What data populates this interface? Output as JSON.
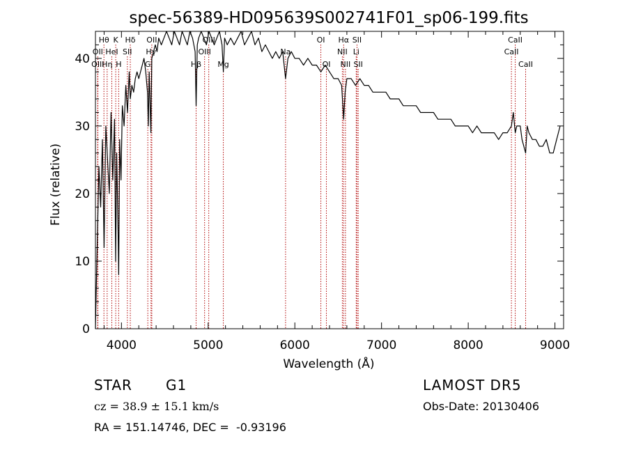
{
  "chart_data": {
    "type": "line",
    "title": "spec-56389-HD095639S002741F01_sp06-199.fits",
    "xlabel": "Wavelength (Å)",
    "ylabel": "Flux (relative)",
    "xlim": [
      3700,
      9100
    ],
    "ylim": [
      0,
      44
    ],
    "xticks": [
      4000,
      5000,
      6000,
      7000,
      8000,
      9000
    ],
    "yticks": [
      0,
      10,
      20,
      30,
      40
    ],
    "grid": false,
    "series": [
      {
        "line_color": "#000000",
        "x": [
          3700,
          3710,
          3725,
          3740,
          3760,
          3780,
          3800,
          3820,
          3840,
          3860,
          3880,
          3900,
          3920,
          3933,
          3945,
          3960,
          3968,
          3980,
          3995,
          4010,
          4030,
          4050,
          4070,
          4090,
          4102,
          4120,
          4140,
          4160,
          4180,
          4200,
          4220,
          4240,
          4260,
          4280,
          4300,
          4310,
          4320,
          4340,
          4350,
          4370,
          4390,
          4410,
          4430,
          4460,
          4490,
          4520,
          4550,
          4580,
          4610,
          4640,
          4670,
          4700,
          4730,
          4760,
          4790,
          4820,
          4850,
          4861,
          4875,
          4890,
          4920,
          4950,
          4980,
          5010,
          5040,
          5070,
          5100,
          5130,
          5160,
          5175,
          5190,
          5220,
          5260,
          5300,
          5340,
          5380,
          5420,
          5460,
          5500,
          5540,
          5580,
          5620,
          5660,
          5700,
          5740,
          5780,
          5820,
          5860,
          5893,
          5920,
          5960,
          6000,
          6050,
          6100,
          6150,
          6200,
          6250,
          6300,
          6350,
          6400,
          6450,
          6500,
          6540,
          6563,
          6580,
          6600,
          6650,
          6700,
          6750,
          6800,
          6850,
          6900,
          6950,
          7000,
          7050,
          7100,
          7150,
          7200,
          7250,
          7300,
          7350,
          7400,
          7450,
          7500,
          7550,
          7600,
          7650,
          7700,
          7750,
          7800,
          7850,
          7900,
          7950,
          8000,
          8050,
          8100,
          8150,
          8200,
          8250,
          8300,
          8350,
          8400,
          8450,
          8498,
          8520,
          8542,
          8560,
          8600,
          8620,
          8662,
          8680,
          8700,
          8740,
          8780,
          8820,
          8860,
          8900,
          8940,
          8980,
          9020,
          9040,
          9060
        ],
        "y": [
          0,
          6,
          15,
          24,
          18,
          28,
          12,
          30,
          25,
          20,
          32,
          22,
          31,
          10,
          26,
          15,
          8,
          28,
          22,
          33,
          30,
          36,
          32,
          38,
          34,
          36,
          35,
          37,
          38,
          37,
          38,
          39,
          40,
          38,
          35,
          30,
          38,
          29,
          40,
          41,
          42,
          41,
          43,
          42,
          43,
          44,
          43,
          42,
          44,
          43,
          42,
          44,
          43,
          42,
          44,
          43,
          41,
          33,
          42,
          43,
          44,
          43,
          42,
          44,
          43,
          42,
          43,
          44,
          42,
          38,
          43,
          42,
          43,
          42,
          43,
          44,
          42,
          43,
          44,
          42,
          43,
          41,
          42,
          41,
          40,
          41,
          40,
          41,
          37,
          40,
          41,
          40,
          40,
          39,
          40,
          39,
          39,
          38,
          39,
          38,
          37,
          37,
          36,
          31,
          35,
          37,
          37,
          36,
          37,
          36,
          36,
          35,
          35,
          35,
          35,
          34,
          34,
          34,
          33,
          33,
          33,
          33,
          32,
          32,
          32,
          32,
          31,
          31,
          31,
          31,
          30,
          30,
          30,
          30,
          29,
          30,
          29,
          29,
          29,
          29,
          28,
          29,
          29,
          30,
          32,
          29,
          30,
          30,
          28,
          26,
          30,
          29,
          28,
          28,
          27,
          27,
          28,
          26,
          26,
          28,
          29,
          30
        ]
      }
    ],
    "line_markers": [
      {
        "name": "Hθ",
        "wl": 3798,
        "row": 0
      },
      {
        "name": "K",
        "wl": 3934,
        "row": 0
      },
      {
        "name": "Hδ",
        "wl": 4102,
        "row": 0
      },
      {
        "name": "OII",
        "wl": 4350,
        "row": 0
      },
      {
        "name": "OIII",
        "wl": 5007,
        "row": 0
      },
      {
        "name": "OI",
        "wl": 6300,
        "row": 0
      },
      {
        "name": "Hα",
        "wl": 6563,
        "row": 0
      },
      {
        "name": "SII",
        "wl": 6717,
        "row": 0
      },
      {
        "name": "CaII",
        "wl": 8542,
        "row": 0
      },
      {
        "name": "OII",
        "wl": 3727,
        "row": 1
      },
      {
        "name": "HeI",
        "wl": 3889,
        "row": 1
      },
      {
        "name": "SII",
        "wl": 4068,
        "row": 1
      },
      {
        "name": "Hγ",
        "wl": 4341,
        "row": 1
      },
      {
        "name": "OIII",
        "wl": 4959,
        "row": 1
      },
      {
        "name": "Na",
        "wl": 5893,
        "row": 1
      },
      {
        "name": "NII",
        "wl": 6548,
        "row": 1
      },
      {
        "name": "Li",
        "wl": 6708,
        "row": 1
      },
      {
        "name": "CaII",
        "wl": 8498,
        "row": 1
      },
      {
        "name": "OIII",
        "wl": 3727,
        "row": 2
      },
      {
        "name": "Hη",
        "wl": 3835,
        "row": 2
      },
      {
        "name": "H",
        "wl": 3968,
        "row": 2
      },
      {
        "name": "G",
        "wl": 4304,
        "row": 2
      },
      {
        "name": "Hβ",
        "wl": 4861,
        "row": 2
      },
      {
        "name": "Mg",
        "wl": 5175,
        "row": 2
      },
      {
        "name": "OI",
        "wl": 6364,
        "row": 2
      },
      {
        "name": "NII",
        "wl": 6584,
        "row": 2
      },
      {
        "name": "SII",
        "wl": 6731,
        "row": 2
      },
      {
        "name": "CaII",
        "wl": 8662,
        "row": 2
      }
    ],
    "marker_color": "#b00000"
  },
  "info": {
    "object_class": "STAR",
    "subclass": "G1",
    "survey": "LAMOST DR5",
    "cz": "cz = 38.9 ± 15.1 km/s",
    "obs_date": "Obs-Date: 20130406",
    "coords": "RA = 151.14746, DEC =  -0.93196"
  }
}
